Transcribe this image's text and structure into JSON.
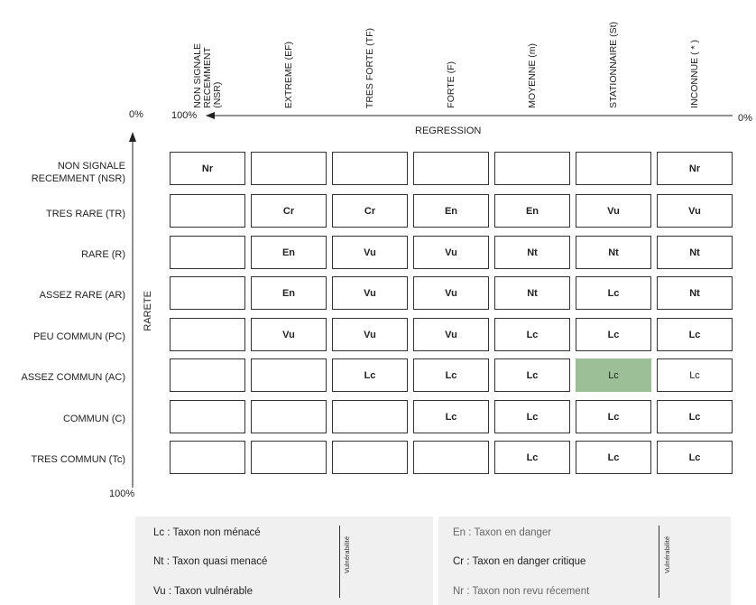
{
  "regression": {
    "title": "REGRESSION",
    "left_pct": "100%",
    "right_pct": "0%",
    "columns": [
      "NON SIGNALE\nRECEMMENT\n(NSR)",
      "EXTREME (EF)",
      "TRES FORTE  (TF)",
      "FORTE (F)",
      "MOYENNE (m)",
      "STATIONNAIRE (St)",
      "INCONNUE ( * )"
    ]
  },
  "rarete": {
    "title": "RARETE",
    "top_pct": "0%",
    "bottom_pct": "100%",
    "rows": [
      "NON SIGNALE\nRECEMMENT (NSR)",
      "TRES RARE (TR)",
      "RARE (R)",
      "ASSEZ RARE (AR)",
      "PEU COMMUN (PC)",
      "ASSEZ COMMUN (AC)",
      "COMMUN (C)",
      "TRES COMMUN (Tc)"
    ]
  },
  "matrix": [
    [
      "Nr",
      "",
      "",
      "",
      "",
      "",
      "Nr"
    ],
    [
      "",
      "Cr",
      "Cr",
      "En",
      "En",
      "Vu",
      "Vu"
    ],
    [
      "",
      "En",
      "Vu",
      "Vu",
      "Nt",
      "Nt",
      "Nt"
    ],
    [
      "",
      "En",
      "Vu",
      "Vu",
      "Nt",
      "Lc",
      "Nt"
    ],
    [
      "",
      "Vu",
      "Vu",
      "Vu",
      "Lc",
      "Lc",
      "Lc"
    ],
    [
      "",
      "",
      "Lc",
      "Lc",
      "Lc",
      "Lc",
      "Lc"
    ],
    [
      "",
      "",
      "",
      "Lc",
      "Lc",
      "Lc",
      "Lc"
    ],
    [
      "",
      "",
      "",
      "",
      "Lc",
      "Lc",
      "Lc"
    ]
  ],
  "highlight_color": "#9dbf97",
  "legend": {
    "left": [
      "Lc : Taxon non ménacé",
      "Nt : Taxon quasi menacé",
      "Vu : Taxon vulnérable"
    ],
    "right": [
      "En : Taxon en danger",
      "Cr : Taxon en danger critique",
      "Nr : Taxon non revu récement"
    ],
    "vulnerabilite": "Vulnérabilité"
  }
}
